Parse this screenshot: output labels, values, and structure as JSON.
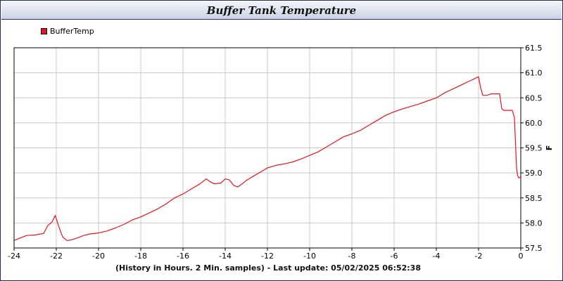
{
  "window": {
    "title": "Buffer Tank Temperature"
  },
  "footer": {
    "caption": "(History in Hours. 2 Min. samples) - Last update: 05/02/2025 06:52:38"
  },
  "colors": {
    "series": "#e8141b",
    "grid": "#c8c8c8",
    "title_bar_border": "#1f2a6b"
  },
  "chart_data": {
    "type": "line",
    "title": "Buffer Tank Temperature",
    "xlabel": "(History in Hours. 2 Min. samples)",
    "ylabel": "F",
    "xlim": [
      -24,
      0
    ],
    "ylim": [
      57.5,
      61.5
    ],
    "grid": true,
    "legend_position": "top-left",
    "x_ticks": [
      -24,
      -22,
      -20,
      -18,
      -16,
      -14,
      -12,
      -10,
      -8,
      -6,
      -4,
      -2,
      0
    ],
    "y_ticks": [
      57.5,
      58.0,
      58.5,
      59.0,
      59.5,
      60.0,
      60.5,
      61.0,
      61.5
    ],
    "series": [
      {
        "name": "BufferTemp",
        "x": [
          -24.0,
          -23.7,
          -23.4,
          -23.0,
          -22.6,
          -22.4,
          -22.2,
          -22.05,
          -21.9,
          -21.7,
          -21.5,
          -21.3,
          -21.0,
          -20.7,
          -20.4,
          -20.0,
          -19.6,
          -19.2,
          -18.8,
          -18.4,
          -18.0,
          -17.6,
          -17.2,
          -16.8,
          -16.4,
          -16.0,
          -15.6,
          -15.2,
          -14.9,
          -14.7,
          -14.5,
          -14.2,
          -14.0,
          -13.8,
          -13.6,
          -13.4,
          -13.2,
          -13.0,
          -12.6,
          -12.2,
          -12.0,
          -11.6,
          -11.2,
          -10.8,
          -10.4,
          -10.0,
          -9.6,
          -9.2,
          -8.8,
          -8.4,
          -8.0,
          -7.6,
          -7.2,
          -6.8,
          -6.4,
          -6.0,
          -5.6,
          -5.2,
          -4.8,
          -4.4,
          -4.0,
          -3.6,
          -3.2,
          -2.8,
          -2.4,
          -2.2,
          -2.0,
          -1.9,
          -1.8,
          -1.6,
          -1.4,
          -1.2,
          -1.0,
          -0.9,
          -0.8,
          -0.6,
          -0.4,
          -0.3,
          -0.25,
          -0.2,
          -0.15,
          -0.1,
          0.0
        ],
        "y": [
          57.65,
          57.7,
          57.75,
          57.76,
          57.79,
          57.95,
          58.02,
          58.15,
          57.95,
          57.72,
          57.65,
          57.66,
          57.7,
          57.75,
          57.78,
          57.8,
          57.84,
          57.9,
          57.97,
          58.06,
          58.12,
          58.2,
          58.28,
          58.38,
          58.5,
          58.58,
          58.68,
          58.78,
          58.88,
          58.82,
          58.78,
          58.8,
          58.88,
          58.86,
          58.75,
          58.72,
          58.78,
          58.85,
          58.95,
          59.05,
          59.1,
          59.15,
          59.18,
          59.22,
          59.28,
          59.35,
          59.42,
          59.52,
          59.62,
          59.72,
          59.78,
          59.85,
          59.95,
          60.05,
          60.15,
          60.22,
          60.28,
          60.33,
          60.38,
          60.44,
          60.5,
          60.6,
          60.68,
          60.76,
          60.84,
          60.88,
          60.92,
          60.7,
          60.55,
          60.55,
          60.58,
          60.58,
          60.58,
          60.28,
          60.25,
          60.25,
          60.25,
          60.1,
          59.6,
          59.1,
          58.95,
          58.9,
          58.92
        ]
      }
    ]
  }
}
